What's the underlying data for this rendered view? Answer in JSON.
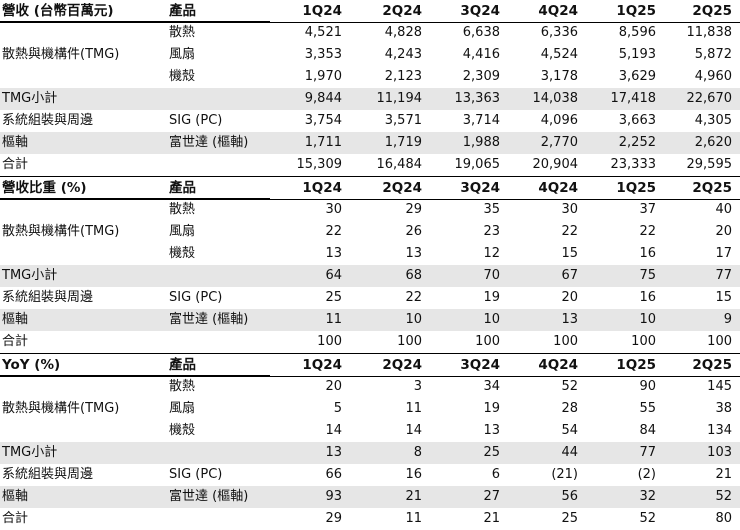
{
  "sections": [
    {
      "header": {
        "category": "營收 (台幣百萬元)",
        "product": "產品",
        "periods": [
          "1Q24",
          "2Q24",
          "3Q24",
          "4Q24",
          "1Q25",
          "2Q25"
        ]
      },
      "rows": [
        {
          "category": "",
          "product": "散熱",
          "values": [
            "4,521",
            "4,828",
            "6,638",
            "6,336",
            "8,596",
            "11,838"
          ],
          "shaded": false
        },
        {
          "category": "散熱與機構件(TMG)",
          "product": "風扇",
          "values": [
            "3,353",
            "4,243",
            "4,416",
            "4,524",
            "5,193",
            "5,872"
          ],
          "shaded": false
        },
        {
          "category": "",
          "product": "機殼",
          "values": [
            "1,970",
            "2,123",
            "2,309",
            "3,178",
            "3,629",
            "4,960"
          ],
          "shaded": false
        },
        {
          "category": "TMG小計",
          "product": "",
          "values": [
            "9,844",
            "11,194",
            "13,363",
            "14,038",
            "17,418",
            "22,670"
          ],
          "shaded": true
        },
        {
          "category": "系統組裝與周邊",
          "product": "SIG (PC)",
          "values": [
            "3,754",
            "3,571",
            "3,714",
            "4,096",
            "3,663",
            "4,305"
          ],
          "shaded": false
        },
        {
          "category": "樞軸",
          "product": "富世達 (樞軸)",
          "values": [
            "1,711",
            "1,719",
            "1,988",
            "2,770",
            "2,252",
            "2,620"
          ],
          "shaded": true
        },
        {
          "category": "合計",
          "product": "",
          "values": [
            "15,309",
            "16,484",
            "19,065",
            "20,904",
            "23,333",
            "29,595"
          ],
          "shaded": false
        }
      ]
    },
    {
      "header": {
        "category": "營收比重 (%)",
        "product": "產品",
        "periods": [
          "1Q24",
          "2Q24",
          "3Q24",
          "4Q24",
          "1Q25",
          "2Q25"
        ]
      },
      "rows": [
        {
          "category": "",
          "product": "散熱",
          "values": [
            "30",
            "29",
            "35",
            "30",
            "37",
            "40"
          ],
          "shaded": false
        },
        {
          "category": "散熱與機構件(TMG)",
          "product": "風扇",
          "values": [
            "22",
            "26",
            "23",
            "22",
            "22",
            "20"
          ],
          "shaded": false
        },
        {
          "category": "",
          "product": "機殼",
          "values": [
            "13",
            "13",
            "12",
            "15",
            "16",
            "17"
          ],
          "shaded": false
        },
        {
          "category": "TMG小計",
          "product": "",
          "values": [
            "64",
            "68",
            "70",
            "67",
            "75",
            "77"
          ],
          "shaded": true
        },
        {
          "category": "系統組裝與周邊",
          "product": "SIG (PC)",
          "values": [
            "25",
            "22",
            "19",
            "20",
            "16",
            "15"
          ],
          "shaded": false
        },
        {
          "category": "樞軸",
          "product": "富世達 (樞軸)",
          "values": [
            "11",
            "10",
            "10",
            "13",
            "10",
            "9"
          ],
          "shaded": true
        },
        {
          "category": "合計",
          "product": "",
          "values": [
            "100",
            "100",
            "100",
            "100",
            "100",
            "100"
          ],
          "shaded": false
        }
      ]
    },
    {
      "header": {
        "category": "YoY (%)",
        "product": "產品",
        "periods": [
          "1Q24",
          "2Q24",
          "3Q24",
          "4Q24",
          "1Q25",
          "2Q25"
        ]
      },
      "rows": [
        {
          "category": "",
          "product": "散熱",
          "values": [
            "20",
            "3",
            "34",
            "52",
            "90",
            "145"
          ],
          "shaded": false
        },
        {
          "category": "散熱與機構件(TMG)",
          "product": "風扇",
          "values": [
            "5",
            "11",
            "19",
            "28",
            "55",
            "38"
          ],
          "shaded": false
        },
        {
          "category": "",
          "product": "機殼",
          "values": [
            "14",
            "14",
            "13",
            "54",
            "84",
            "134"
          ],
          "shaded": false
        },
        {
          "category": "TMG小計",
          "product": "",
          "values": [
            "13",
            "8",
            "25",
            "44",
            "77",
            "103"
          ],
          "shaded": true
        },
        {
          "category": "系統組裝與周邊",
          "product": "SIG (PC)",
          "values": [
            "66",
            "16",
            "6",
            "(21)",
            "(2)",
            "21"
          ],
          "shaded": false
        },
        {
          "category": "樞軸",
          "product": "富世達 (樞軸)",
          "values": [
            "93",
            "21",
            "27",
            "56",
            "32",
            "52"
          ],
          "shaded": true
        },
        {
          "category": "合計",
          "product": "",
          "values": [
            "29",
            "11",
            "21",
            "25",
            "52",
            "80"
          ],
          "shaded": false
        }
      ]
    }
  ]
}
